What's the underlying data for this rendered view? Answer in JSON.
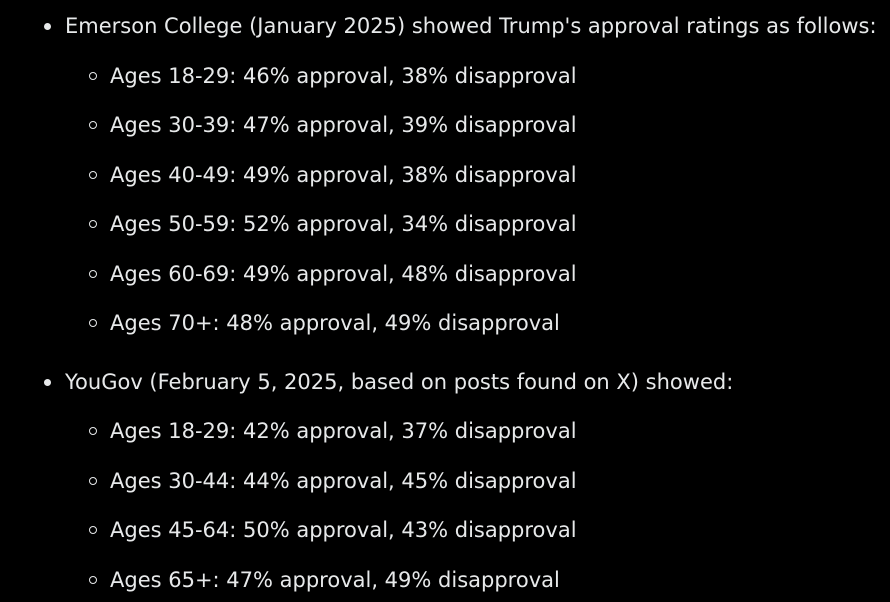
{
  "sections": [
    {
      "heading": "Emerson College (January 2025) showed Trump's approval ratings as follows:",
      "items": [
        "Ages 18-29: 46% approval, 38% disapproval",
        "Ages 30-39: 47% approval, 39% disapproval",
        "Ages 40-49: 49% approval, 38% disapproval",
        "Ages 50-59: 52% approval, 34% disapproval",
        "Ages 60-69: 49% approval, 48% disapproval",
        "Ages 70+: 48% approval, 49% disapproval"
      ]
    },
    {
      "heading": "YouGov (February 5, 2025, based on posts found on X) showed:",
      "items": [
        "Ages 18-29: 42% approval, 37% disapproval",
        "Ages 30-44: 44% approval, 45% disapproval",
        "Ages 45-64: 50% approval, 43% disapproval",
        "Ages 65+: 47% approval, 49% disapproval"
      ]
    }
  ],
  "colors": {
    "background": "#000000",
    "text": "#e7e9ea"
  }
}
